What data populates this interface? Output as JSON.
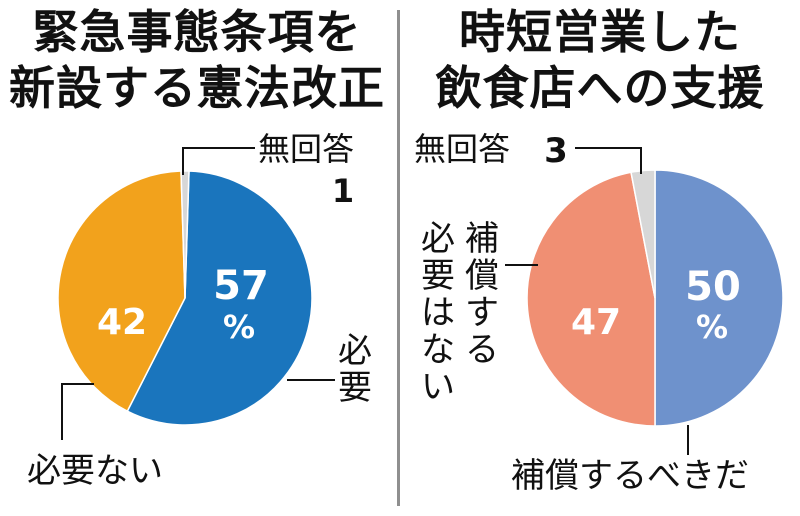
{
  "chart_data": [
    {
      "type": "pie",
      "title": [
        "緊急事態条項を",
        "新設する憲法改正"
      ],
      "slices": [
        {
          "label": "必要",
          "value": 57,
          "value_label": "57",
          "unit": "%",
          "color": "#1a75bd"
        },
        {
          "label": "必要ない",
          "value": 42,
          "value_label": "42",
          "unit": "",
          "color": "#f2a21c"
        },
        {
          "label": "無回答",
          "value": 1,
          "value_label": "1",
          "unit": "",
          "color": "#d7d7d7"
        }
      ]
    },
    {
      "type": "pie",
      "title": [
        "時短営業した",
        "飲食店への支援"
      ],
      "slices": [
        {
          "label": "補償するべきだ",
          "value": 50,
          "value_label": "50",
          "unit": "%",
          "color": "#6e92cc"
        },
        {
          "label": "補償する必要はない",
          "value": 47,
          "value_label": "47",
          "unit": "",
          "color": "#f08f73"
        },
        {
          "label": "無回答",
          "value": 3,
          "value_label": "3",
          "unit": "",
          "color": "#d7d7d7"
        }
      ],
      "vertical_label_lines": [
        "補償する",
        "必要はない"
      ]
    }
  ]
}
